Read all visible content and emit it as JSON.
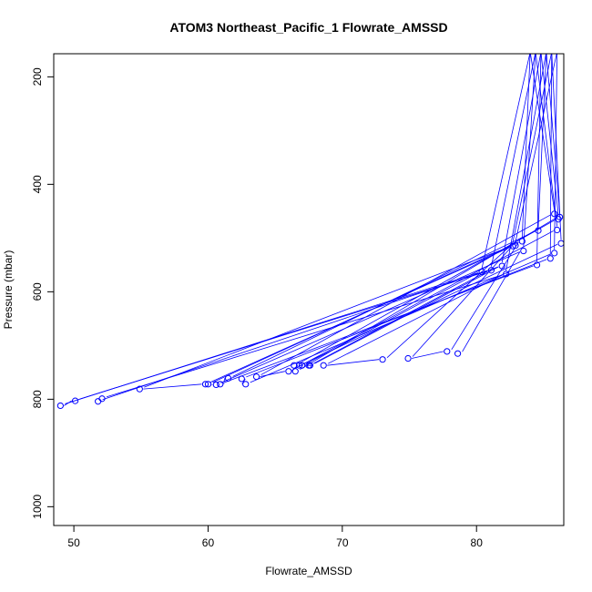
{
  "chart_data": {
    "type": "scatter",
    "title": "ATOM3 Northeast_Pacific_1 Flowrate_AMSSD",
    "xlabel": "Flowrate_AMSSD",
    "ylabel": "Pressure (mbar)",
    "xlim": [
      48.5,
      86.5
    ],
    "ylim": [
      1035,
      157
    ],
    "x_ticks": [
      50,
      60,
      70,
      80
    ],
    "y_ticks": [
      200,
      400,
      600,
      800,
      1000
    ],
    "grid": false,
    "line_color": "#0000ff",
    "marker": "open-circle",
    "series": [
      {
        "points": [
          {
            "x": 49.0,
            "y": 812
          },
          {
            "x": 50.1,
            "y": 803
          },
          {
            "x": 51.8,
            "y": 804
          },
          {
            "x": 52.1,
            "y": 799
          },
          {
            "x": 54.9,
            "y": 781
          },
          {
            "x": 59.8,
            "y": 772
          },
          {
            "x": 60.0,
            "y": 772
          },
          {
            "x": 60.6,
            "y": 773
          },
          {
            "x": 60.9,
            "y": 772
          },
          {
            "x": 61.5,
            "y": 761
          },
          {
            "x": 62.5,
            "y": 762
          },
          {
            "x": 62.8,
            "y": 772
          },
          {
            "x": 63.6,
            "y": 758
          },
          {
            "x": 66.0,
            "y": 748
          },
          {
            "x": 66.4,
            "y": 737
          },
          {
            "x": 66.5,
            "y": 748
          },
          {
            "x": 66.8,
            "y": 737
          },
          {
            "x": 67.0,
            "y": 737
          },
          {
            "x": 67.5,
            "y": 737
          },
          {
            "x": 67.6,
            "y": 737
          },
          {
            "x": 68.6,
            "y": 737
          },
          {
            "x": 73.0,
            "y": 726
          },
          {
            "x": 74.9,
            "y": 724
          },
          {
            "x": 77.8,
            "y": 711
          },
          {
            "x": 78.6,
            "y": 715
          },
          {
            "x": 80.4,
            "y": 563
          },
          {
            "x": 81.1,
            "y": 560
          },
          {
            "x": 81.9,
            "y": 552
          },
          {
            "x": 82.2,
            "y": 567
          },
          {
            "x": 82.7,
            "y": 515
          },
          {
            "x": 82.9,
            "y": 514
          },
          {
            "x": 83.4,
            "y": 506
          },
          {
            "x": 83.5,
            "y": 524
          },
          {
            "x": 84.5,
            "y": 550
          },
          {
            "x": 84.6,
            "y": 486
          },
          {
            "x": 85.5,
            "y": 538
          },
          {
            "x": 85.8,
            "y": 528
          },
          {
            "x": 85.8,
            "y": 455
          },
          {
            "x": 86.0,
            "y": 485
          },
          {
            "x": 86.1,
            "y": 465
          },
          {
            "x": 86.2,
            "y": 461
          },
          {
            "x": 86.3,
            "y": 510
          }
        ]
      }
    ]
  }
}
